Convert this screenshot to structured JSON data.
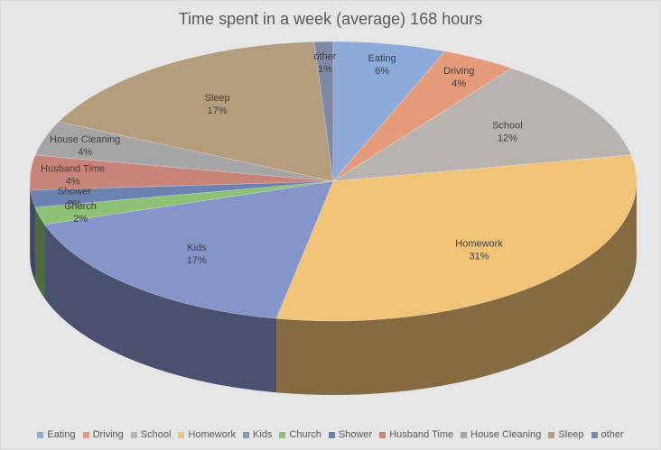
{
  "chart_data": {
    "type": "pie",
    "style": "3d",
    "title": "Time spent in a week (average) 168 hours",
    "legend_position": "bottom",
    "slices": [
      {
        "label": "Eating",
        "percent": 6,
        "pct_label": "6%",
        "color": "#8eaadb"
      },
      {
        "label": "Driving",
        "percent": 4,
        "pct_label": "4%",
        "color": "#e59a7a"
      },
      {
        "label": "School",
        "percent": 12,
        "pct_label": "12%",
        "color": "#b8b3ae"
      },
      {
        "label": "Homework",
        "percent": 31,
        "pct_label": "31%",
        "color": "#f1c376"
      },
      {
        "label": "Kids",
        "percent": 17,
        "pct_label": "17%",
        "color": "#8594c9"
      },
      {
        "label": "Church",
        "percent": 2,
        "pct_label": "2%",
        "color": "#8cc176"
      },
      {
        "label": "Shower",
        "percent": 2,
        "pct_label": "2%",
        "color": "#6c82b0"
      },
      {
        "label": "Husband Time",
        "percent": 4,
        "pct_label": "4%",
        "color": "#c9847a"
      },
      {
        "label": "House Cleaning",
        "percent": 4,
        "pct_label": "4%",
        "color": "#a5a5a5"
      },
      {
        "label": "Sleep",
        "percent": 17,
        "pct_label": "17%",
        "color": "#b59c7c"
      },
      {
        "label": "other",
        "percent": 1,
        "pct_label": "1%",
        "color": "#7f8aa8"
      }
    ]
  }
}
